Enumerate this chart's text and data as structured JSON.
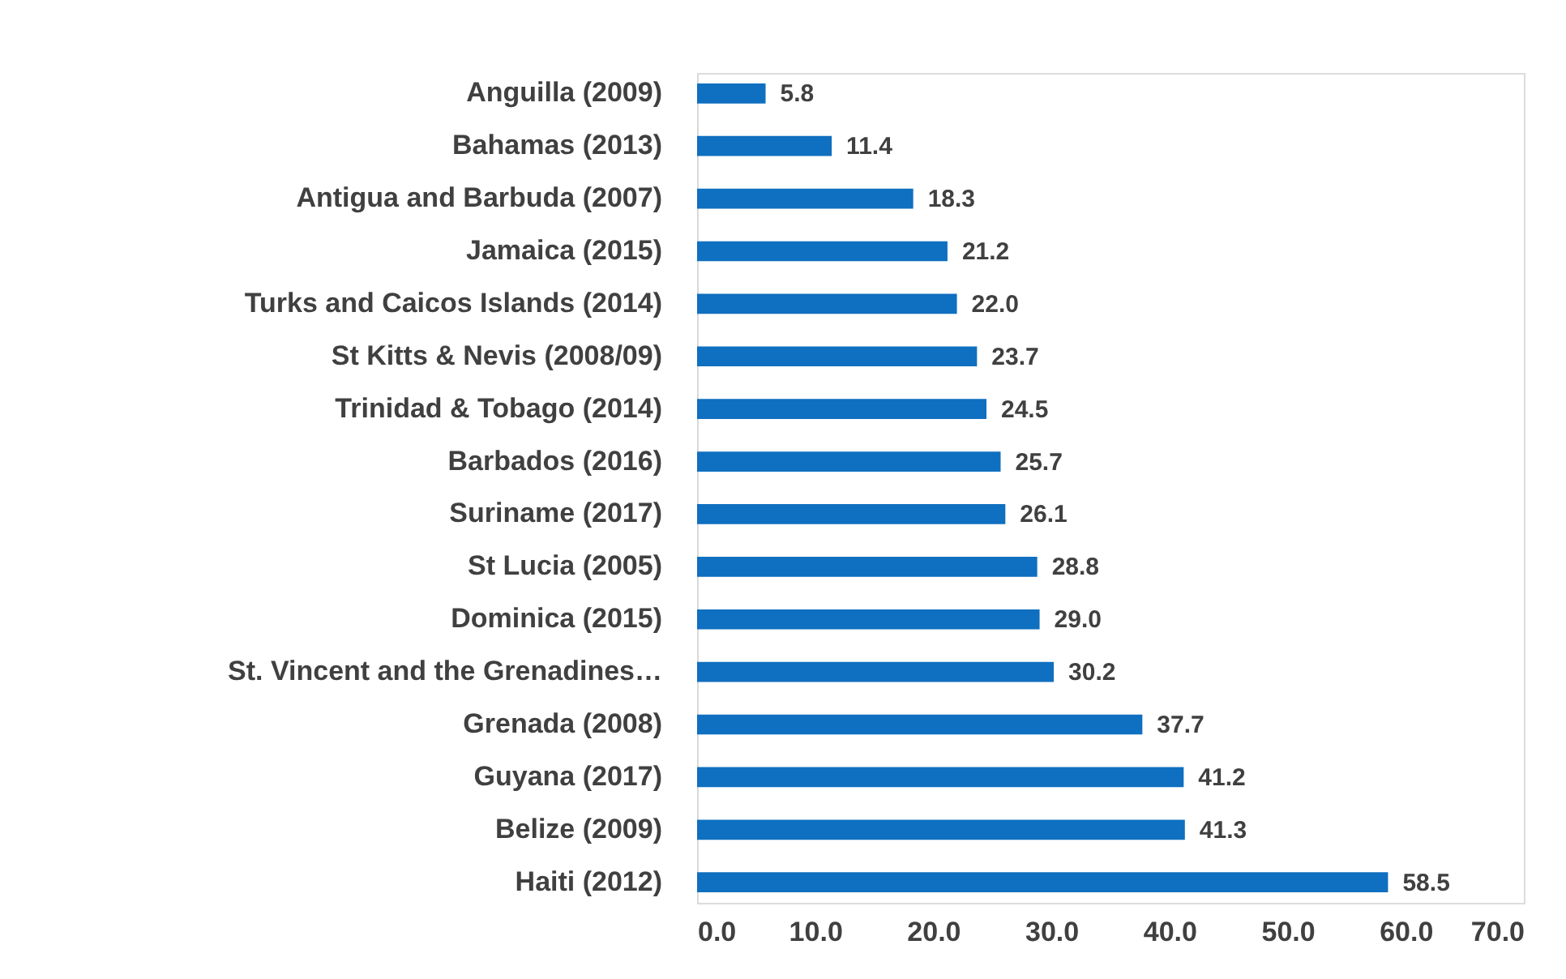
{
  "chart_data": {
    "type": "bar",
    "orientation": "horizontal",
    "categories": [
      "Anguilla (2009)",
      "Bahamas (2013)",
      "Antigua and Barbuda (2007)",
      "Jamaica (2015)",
      "Turks and Caicos Islands (2014)",
      "St Kitts & Nevis (2008/09)",
      "Trinidad & Tobago (2014)",
      "Barbados (2016)",
      "Suriname (2017)",
      "St Lucia (2005)",
      "Dominica (2015)",
      "St. Vincent and the Grenadines…",
      "Grenada (2008)",
      "Guyana (2017)",
      "Belize (2009)",
      "Haiti (2012)"
    ],
    "values": [
      5.8,
      11.4,
      18.3,
      21.2,
      22.0,
      23.7,
      24.5,
      25.7,
      26.1,
      28.8,
      29.0,
      30.2,
      37.7,
      41.2,
      41.3,
      58.5
    ],
    "color": "#0f6fc0",
    "xlim": [
      0,
      70
    ],
    "xticks": [
      {
        "value": 0,
        "label": "0.0"
      },
      {
        "value": 10,
        "label": "10.0"
      },
      {
        "value": 20,
        "label": "20.0"
      },
      {
        "value": 30,
        "label": "30.0"
      },
      {
        "value": 40,
        "label": "40.0"
      },
      {
        "value": 50,
        "label": "50.0"
      },
      {
        "value": 60,
        "label": "60.0"
      },
      {
        "value": 70,
        "label": "70.0"
      }
    ],
    "value_labels": [
      "5.8",
      "11.4",
      "18.3",
      "21.2",
      "22.0",
      "23.7",
      "24.5",
      "25.7",
      "26.1",
      "28.8",
      "29.0",
      "30.2",
      "37.7",
      "41.2",
      "41.3",
      "58.5"
    ],
    "grid": false
  }
}
